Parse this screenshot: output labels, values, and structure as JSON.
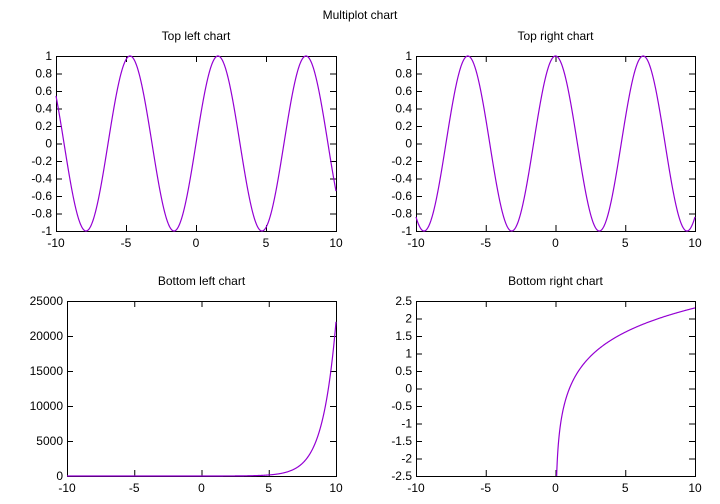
{
  "title": "Multiplot chart",
  "colors": {
    "series": "#9400d3",
    "axis": "#000000"
  },
  "chart_data": [
    {
      "type": "line",
      "title": "Top left chart",
      "function": "sin(x)",
      "xlim": [
        -10,
        10
      ],
      "ylim": [
        -1,
        1
      ],
      "xticks": [
        -10,
        -5,
        0,
        5,
        10
      ],
      "yticks": [
        -1,
        -0.8,
        -0.6,
        -0.4,
        -0.2,
        0,
        0.2,
        0.4,
        0.6,
        0.8,
        1
      ],
      "xtick_labels": [
        "-10",
        "-5",
        "0",
        "5",
        "10"
      ],
      "ytick_labels": [
        "-1",
        "-0.8",
        "-0.6",
        "-0.4",
        "-0.2",
        "0",
        "0.2",
        "0.4",
        "0.6",
        "0.8",
        "1"
      ],
      "grid": false
    },
    {
      "type": "line",
      "title": "Top right chart",
      "function": "cos(x)",
      "xlim": [
        -10,
        10
      ],
      "ylim": [
        -1,
        1
      ],
      "xticks": [
        -10,
        -5,
        0,
        5,
        10
      ],
      "yticks": [
        -1,
        -0.8,
        -0.6,
        -0.4,
        -0.2,
        0,
        0.2,
        0.4,
        0.6,
        0.8,
        1
      ],
      "xtick_labels": [
        "-10",
        "-5",
        "0",
        "5",
        "10"
      ],
      "ytick_labels": [
        "-1",
        "-0.8",
        "-0.6",
        "-0.4",
        "-0.2",
        "0",
        "0.2",
        "0.4",
        "0.6",
        "0.8",
        "1"
      ],
      "grid": false
    },
    {
      "type": "line",
      "title": "Bottom left chart",
      "function": "exp(x)",
      "xlim": [
        -10,
        10
      ],
      "ylim": [
        0,
        25000
      ],
      "xticks": [
        -10,
        -5,
        0,
        5,
        10
      ],
      "yticks": [
        0,
        5000,
        10000,
        15000,
        20000,
        25000
      ],
      "xtick_labels": [
        "-10",
        "-5",
        "0",
        "5",
        "10"
      ],
      "ytick_labels": [
        "0",
        "5000",
        "10000",
        "15000",
        "20000",
        "25000"
      ],
      "grid": false
    },
    {
      "type": "line",
      "title": "Bottom right chart",
      "function": "log(x)",
      "xlim": [
        -10,
        10
      ],
      "ylim": [
        -2.5,
        2.5
      ],
      "xticks": [
        -10,
        -5,
        0,
        5,
        10
      ],
      "yticks": [
        -2.5,
        -2,
        -1.5,
        -1,
        -0.5,
        0,
        0.5,
        1,
        1.5,
        2,
        2.5
      ],
      "xtick_labels": [
        "-10",
        "-5",
        "0",
        "5",
        "10"
      ],
      "ytick_labels": [
        "-2.5",
        "-2",
        "-1.5",
        "-1",
        "-0.5",
        "0",
        "0.5",
        "1",
        "1.5",
        "2",
        "2.5"
      ],
      "grid": false
    }
  ]
}
